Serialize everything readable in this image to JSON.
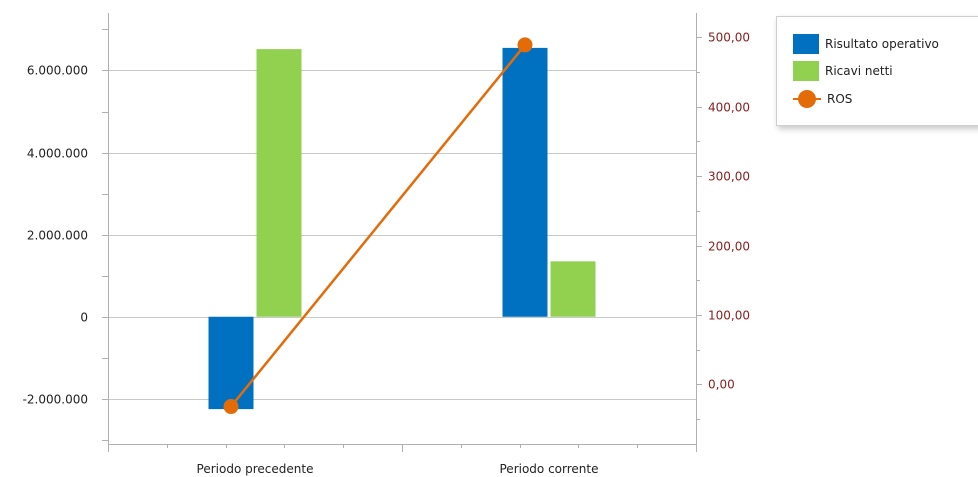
{
  "chart_data": {
    "type": "bar",
    "categories": [
      "Periodo precedente",
      "Periodo corrente"
    ],
    "series": [
      {
        "name": "Risultato operativo",
        "type": "bar",
        "axis": "left",
        "color": "#0070c0",
        "values": [
          -2250000,
          6550000
        ]
      },
      {
        "name": "Ricavi netti",
        "type": "bar",
        "axis": "left",
        "color": "#92d050",
        "values": [
          6520000,
          1350000
        ]
      },
      {
        "name": "ROS",
        "type": "line",
        "axis": "right",
        "color": "#e36c09",
        "values": [
          -32,
          489
        ]
      }
    ],
    "left_axis": {
      "range": [
        -3100000,
        7400000
      ],
      "ticks": [
        -2000000,
        0,
        2000000,
        4000000,
        6000000
      ],
      "tick_labels": [
        "-2.000.000",
        "0",
        "2.000.000",
        "4.000.000",
        "6.000.000"
      ]
    },
    "right_axis": {
      "range": [
        -86,
        535
      ],
      "ticks": [
        0,
        100,
        200,
        300,
        400,
        500
      ],
      "tick_labels": [
        "0,00",
        "100,00",
        "200,00",
        "300,00",
        "400,00",
        "500,00"
      ]
    },
    "grid": true,
    "legend_position": "top-right"
  }
}
